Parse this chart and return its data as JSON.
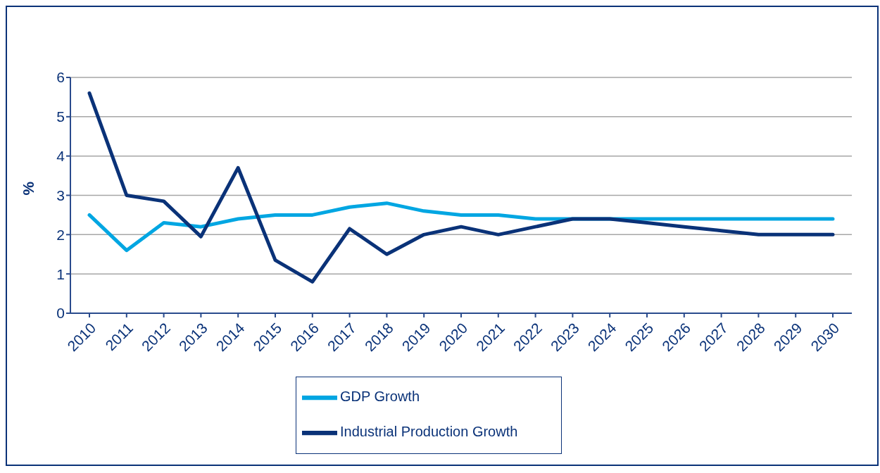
{
  "chart_data": {
    "type": "line",
    "ylabel": "%",
    "categories": [
      "2010",
      "2011",
      "2012",
      "2013",
      "2014",
      "2015",
      "2016",
      "2017",
      "2018",
      "2019",
      "2020",
      "2021",
      "2022",
      "2023",
      "2024",
      "2025",
      "2026",
      "2027",
      "2028",
      "2029",
      "2030"
    ],
    "series": [
      {
        "name": "GDP Growth",
        "color": "#00a6e2",
        "values": [
          2.5,
          1.6,
          2.3,
          2.2,
          2.4,
          2.5,
          2.5,
          2.7,
          2.8,
          2.6,
          2.5,
          2.5,
          2.4,
          2.4,
          2.4,
          2.4,
          2.4,
          2.4,
          2.4,
          2.4,
          2.4
        ]
      },
      {
        "name": "Industrial Production Growth",
        "color": "#0a3278",
        "values": [
          5.6,
          3.0,
          2.85,
          1.95,
          3.7,
          1.35,
          0.8,
          2.15,
          1.5,
          2.0,
          2.2,
          2.0,
          2.2,
          2.4,
          2.4,
          2.3,
          2.2,
          2.1,
          2.0,
          2.0,
          2.0
        ]
      }
    ],
    "ylim": [
      0,
      6
    ],
    "yticks": [
      0,
      1,
      2,
      3,
      4,
      5,
      6
    ],
    "grid": "y",
    "legend": "bottom",
    "marker": "none",
    "line_style": "solid"
  }
}
